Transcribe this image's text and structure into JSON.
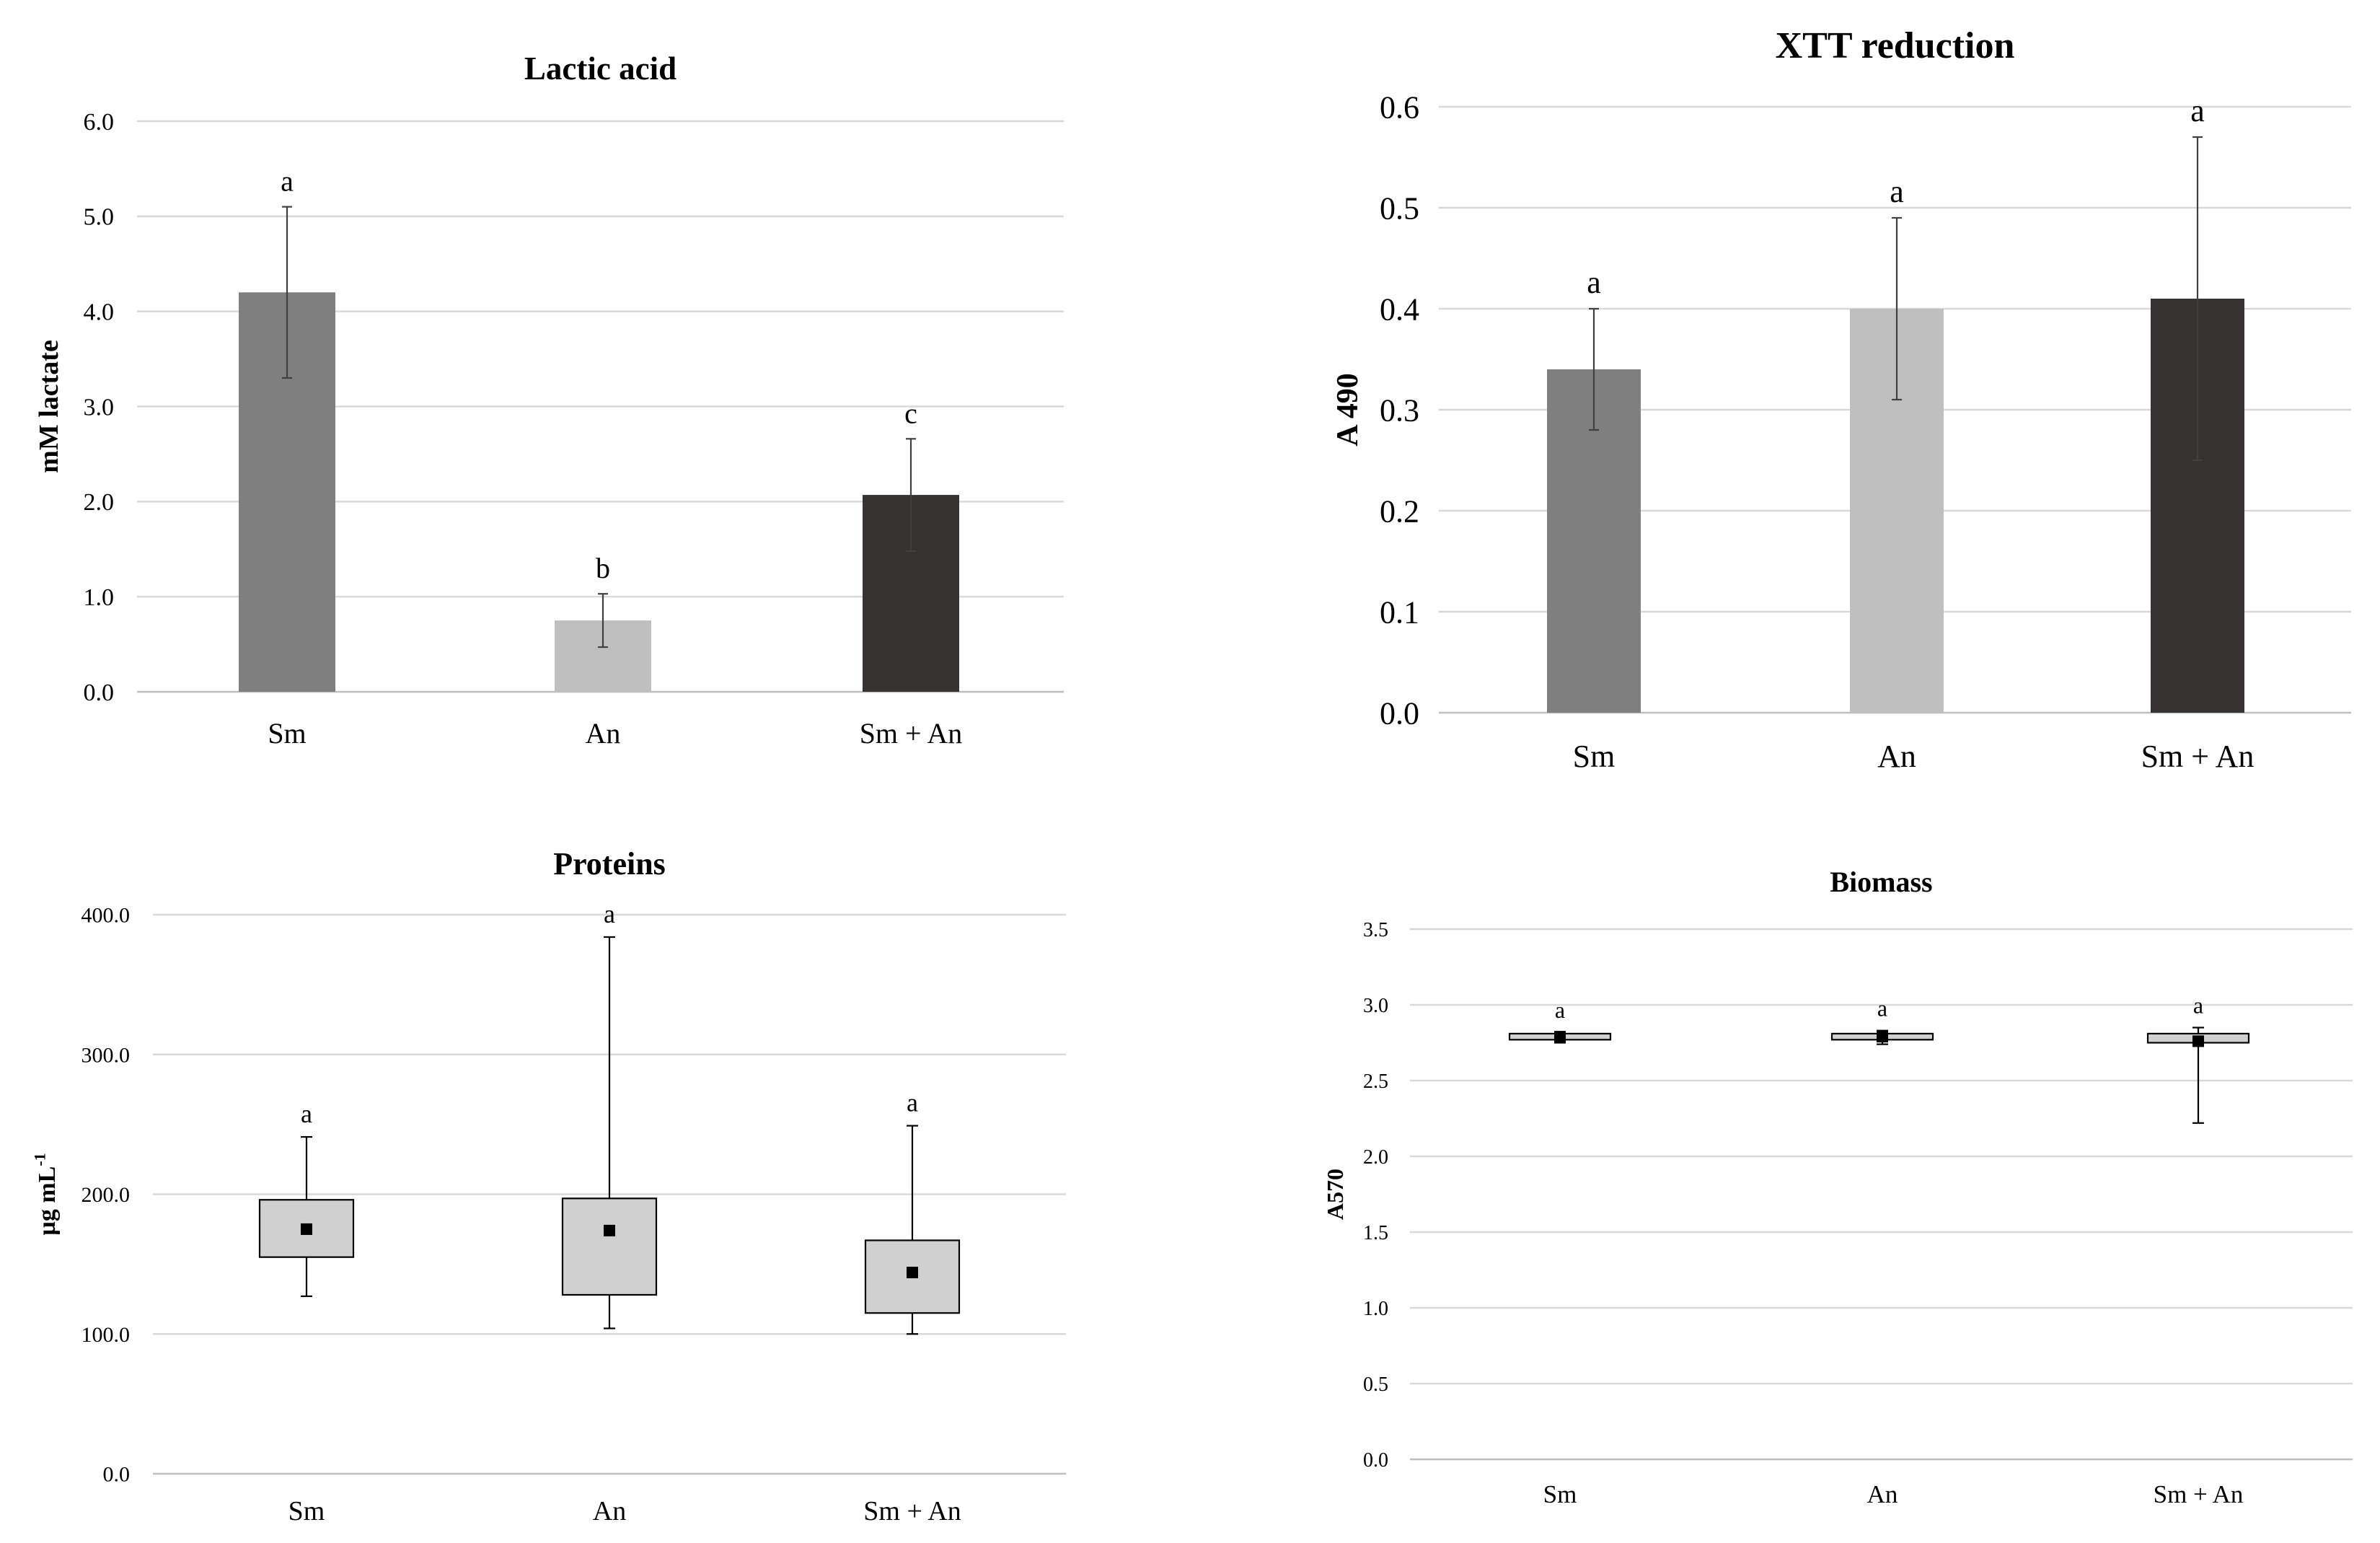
{
  "chart_data": [
    {
      "id": "lactic",
      "type": "bar",
      "title": "Lactic acid",
      "ylabel": "mM lactate",
      "ylabel_sup": "",
      "xlabel": "",
      "categories": [
        "Sm",
        "An",
        "Sm + An"
      ],
      "values": [
        4.2,
        0.75,
        2.07
      ],
      "errors": [
        0.9,
        0.28,
        0.59
      ],
      "letters": [
        "a",
        "b",
        "c"
      ],
      "colors": [
        "#7f7f7f",
        "#bfbfbf",
        "#363232"
      ],
      "ylim": [
        0,
        6
      ],
      "yticks": [
        "0.0",
        "1.0",
        "2.0",
        "3.0",
        "4.0",
        "5.0",
        "6.0"
      ],
      "grid": true
    },
    {
      "id": "xtt",
      "type": "bar",
      "title": "XTT reduction",
      "ylabel": "A 490",
      "ylabel_sup": "",
      "xlabel": "",
      "categories": [
        "Sm",
        "An",
        "Sm + An"
      ],
      "values": [
        0.34,
        0.4,
        0.41
      ],
      "errors": [
        0.06,
        0.09,
        0.16
      ],
      "letters": [
        "a",
        "a",
        "a"
      ],
      "colors": [
        "#7f7f7f",
        "#bfbfbf",
        "#363232"
      ],
      "ylim": [
        0,
        0.6
      ],
      "yticks": [
        "0.0",
        "0.1",
        "0.2",
        "0.3",
        "0.4",
        "0.5",
        "0.6"
      ],
      "grid": true
    },
    {
      "id": "proteins",
      "type": "box",
      "title": "Proteins",
      "ylabel": "µg mL",
      "ylabel_sup": "-1",
      "xlabel": "",
      "categories": [
        "Sm",
        "An",
        "Sm + An"
      ],
      "min": [
        127,
        104,
        100
      ],
      "q1": [
        155,
        128,
        115
      ],
      "q3": [
        196,
        197,
        167
      ],
      "max": [
        241,
        384,
        249
      ],
      "mean": [
        175,
        174,
        144
      ],
      "letters": [
        "a",
        "a",
        "a"
      ],
      "ylim": [
        0,
        400
      ],
      "yticks": [
        "0.0",
        "100.0",
        "200.0",
        "300.0",
        "400.0"
      ],
      "grid": true
    },
    {
      "id": "biomass",
      "type": "box",
      "title": "Biomass",
      "ylabel": "A570",
      "ylabel_sup": "",
      "xlabel": "",
      "categories": [
        "Sm",
        "An",
        "Sm + An"
      ],
      "min": [
        2.75,
        2.74,
        2.22
      ],
      "q1": [
        2.77,
        2.77,
        2.75
      ],
      "q3": [
        2.81,
        2.81,
        2.81
      ],
      "max": [
        2.82,
        2.83,
        2.85
      ],
      "mean": [
        2.79,
        2.79,
        2.76
      ],
      "letters": [
        "a",
        "a",
        "a"
      ],
      "ylim": [
        0,
        3.5
      ],
      "yticks": [
        "0.0",
        "0.5",
        "1.0",
        "1.5",
        "2.0",
        "2.5",
        "3.0",
        "3.5"
      ],
      "grid": true
    }
  ]
}
